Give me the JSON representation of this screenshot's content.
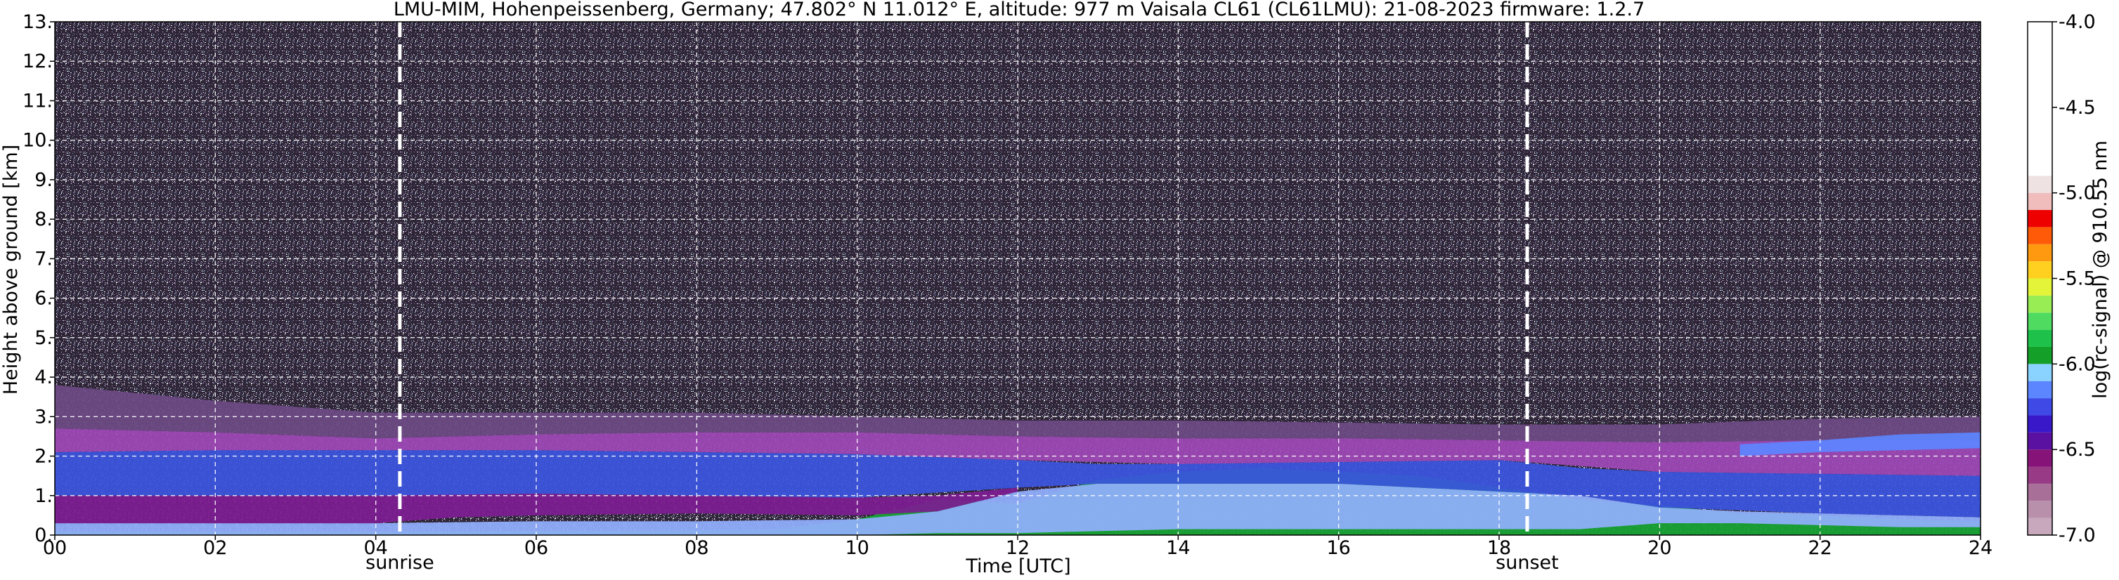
{
  "chart_data": {
    "type": "heatmap",
    "title": "LMU-MIM, Hohenpeissenberg, Germany; 47.802° N 11.012° E, altitude: 977 m    Vaisala CL61 (CL61LMU): 21-08-2023    firmware: 1.2.7",
    "xlabel": "Time [UTC]",
    "ylabel": "Height above ground [km]",
    "xlim": [
      0,
      24
    ],
    "ylim": [
      0,
      13
    ],
    "x_ticks": [
      {
        "value": 0,
        "label": "00"
      },
      {
        "value": 2,
        "label": "02"
      },
      {
        "value": 4,
        "label": "04"
      },
      {
        "value": 6,
        "label": "06"
      },
      {
        "value": 8,
        "label": "08"
      },
      {
        "value": 10,
        "label": "10"
      },
      {
        "value": 12,
        "label": "12"
      },
      {
        "value": 14,
        "label": "14"
      },
      {
        "value": 16,
        "label": "16"
      },
      {
        "value": 18,
        "label": "18"
      },
      {
        "value": 20,
        "label": "20"
      },
      {
        "value": 22,
        "label": "22"
      },
      {
        "value": 24,
        "label": "24"
      }
    ],
    "y_ticks": [
      {
        "value": 0,
        "label": "0."
      },
      {
        "value": 1,
        "label": "1."
      },
      {
        "value": 2,
        "label": "2."
      },
      {
        "value": 3,
        "label": "3."
      },
      {
        "value": 4,
        "label": "4."
      },
      {
        "value": 5,
        "label": "5."
      },
      {
        "value": 6,
        "label": "6."
      },
      {
        "value": 7,
        "label": "7."
      },
      {
        "value": 8,
        "label": "8."
      },
      {
        "value": 9,
        "label": "9."
      },
      {
        "value": 10,
        "label": "10."
      },
      {
        "value": 11,
        "label": "11."
      },
      {
        "value": 12,
        "label": "12."
      },
      {
        "value": 13,
        "label": "13."
      }
    ],
    "grid": true,
    "annotations": [
      {
        "label": "sunrise",
        "time": 4.3
      },
      {
        "label": "sunset",
        "time": 18.35
      }
    ],
    "colorbar": {
      "label": "log(rc-signal) @ 910.55 nm",
      "range": [
        -7.0,
        -4.0
      ],
      "ticks": [
        {
          "value": -4.0,
          "label": "-4.0"
        },
        {
          "value": -4.5,
          "label": "-4.5"
        },
        {
          "value": -5.0,
          "label": "-5.0"
        },
        {
          "value": -5.5,
          "label": "-5.5"
        },
        {
          "value": -6.0,
          "label": "-6.0"
        },
        {
          "value": -6.5,
          "label": "-6.5"
        },
        {
          "value": -7.0,
          "label": "-7.0"
        }
      ],
      "bands": [
        {
          "from": -7.0,
          "to": -6.9,
          "color": "#c8a8bc"
        },
        {
          "from": -6.9,
          "to": -6.8,
          "color": "#b890ab"
        },
        {
          "from": -6.8,
          "to": -6.7,
          "color": "#a87098"
        },
        {
          "from": -6.7,
          "to": -6.6,
          "color": "#983a86"
        },
        {
          "from": -6.6,
          "to": -6.5,
          "color": "#861478"
        },
        {
          "from": -6.5,
          "to": -6.4,
          "color": "#5a10a0"
        },
        {
          "from": -6.4,
          "to": -6.3,
          "color": "#3818c8"
        },
        {
          "from": -6.3,
          "to": -6.2,
          "color": "#3f4ae6"
        },
        {
          "from": -6.2,
          "to": -6.1,
          "color": "#5c86ff"
        },
        {
          "from": -6.1,
          "to": -6.0,
          "color": "#8ad2ff"
        },
        {
          "from": -6.0,
          "to": -5.9,
          "color": "#14a028"
        },
        {
          "from": -5.9,
          "to": -5.8,
          "color": "#1ec24a"
        },
        {
          "from": -5.8,
          "to": -5.7,
          "color": "#4edb60"
        },
        {
          "from": -5.7,
          "to": -5.6,
          "color": "#98ec54"
        },
        {
          "from": -5.6,
          "to": -5.5,
          "color": "#e4f438"
        },
        {
          "from": -5.5,
          "to": -5.4,
          "color": "#ffd020"
        },
        {
          "from": -5.4,
          "to": -5.3,
          "color": "#ff9a10"
        },
        {
          "from": -5.3,
          "to": -5.2,
          "color": "#ff5a08"
        },
        {
          "from": -5.2,
          "to": -5.1,
          "color": "#ee0000"
        },
        {
          "from": -5.1,
          "to": -5.0,
          "color": "#f0bcbc"
        },
        {
          "from": -5.0,
          "to": -4.9,
          "color": "#efe2e2"
        },
        {
          "from": -4.9,
          "to": -4.0,
          "color": "#ffffff"
        }
      ]
    },
    "layers": [
      {
        "name": "surface-green",
        "t": [
          0,
          4,
          6,
          8,
          9,
          10,
          11,
          12,
          13,
          14,
          15,
          16,
          17,
          18,
          19,
          20,
          21,
          22,
          23,
          24
        ],
        "bottom": [
          0,
          0,
          0,
          0,
          0,
          0,
          0,
          0,
          0,
          0,
          0,
          0,
          0,
          0,
          0,
          0,
          0,
          0,
          0,
          0
        ],
        "top": [
          0.08,
          0.08,
          0.1,
          0.12,
          0.15,
          0.4,
          0.9,
          0.8,
          1.4,
          1.6,
          1.7,
          1.6,
          1.5,
          1.2,
          0.9,
          0.75,
          0.55,
          0.5,
          0.4,
          0.35
        ],
        "color": "#16a532"
      },
      {
        "name": "light-blue-mixed-layer",
        "t": [
          0,
          4,
          6,
          8,
          10,
          11,
          12,
          13,
          14,
          15,
          16,
          17,
          18,
          19,
          20,
          21,
          22,
          23,
          24
        ],
        "bottom": [
          0,
          0,
          0,
          0,
          0,
          0.05,
          0.05,
          0.1,
          0.15,
          0.15,
          0.15,
          0.15,
          0.15,
          0.15,
          0.3,
          0.3,
          0.25,
          0.2,
          0.2
        ],
        "top": [
          0.3,
          0.3,
          0.35,
          0.35,
          0.4,
          0.6,
          1.1,
          1.3,
          1.3,
          1.3,
          1.3,
          1.2,
          1.1,
          1.0,
          0.7,
          0.6,
          0.55,
          0.5,
          0.45
        ],
        "color": "#93b0ff"
      },
      {
        "name": "purple-residual-layer",
        "t": [
          0,
          2,
          4,
          5,
          6,
          8,
          10,
          11,
          12
        ],
        "bottom": [
          0.3,
          0.3,
          0.3,
          0.45,
          0.5,
          0.55,
          0.5,
          0.6,
          1.1
        ],
        "top": [
          1.0,
          1.0,
          1.0,
          1.05,
          1.05,
          1.0,
          0.95,
          1.0,
          1.2
        ],
        "color": "#7e1c92"
      },
      {
        "name": "blue-aerosol-layer",
        "t": [
          0,
          2,
          4,
          6,
          8,
          10,
          12,
          13,
          14,
          16,
          18,
          19,
          20,
          22,
          24
        ],
        "bottom": [
          1.0,
          1.0,
          1.0,
          1.05,
          1.0,
          0.95,
          1.2,
          1.3,
          1.3,
          1.3,
          1.1,
          1.0,
          0.7,
          0.55,
          0.45
        ],
        "top": [
          2.1,
          2.15,
          2.15,
          2.15,
          2.1,
          2.05,
          1.9,
          1.8,
          1.8,
          1.85,
          1.9,
          1.7,
          1.6,
          1.55,
          1.5
        ],
        "color": "#3b55e0"
      },
      {
        "name": "magenta-upper-layer",
        "t": [
          0,
          2,
          4,
          6,
          8,
          10,
          12,
          14,
          16,
          18,
          20,
          22,
          24
        ],
        "bottom": [
          2.1,
          2.15,
          2.15,
          2.15,
          2.1,
          2.05,
          1.9,
          1.8,
          1.85,
          1.9,
          1.6,
          1.55,
          1.5
        ],
        "top": [
          2.7,
          2.6,
          2.45,
          2.55,
          2.6,
          2.6,
          2.5,
          2.45,
          2.45,
          2.4,
          2.35,
          2.4,
          2.4
        ],
        "color": "#9e48b6"
      },
      {
        "name": "faint-top-layer",
        "t": [
          0,
          2,
          4,
          6,
          8,
          10,
          12,
          14,
          16,
          18,
          20,
          22,
          24
        ],
        "bottom": [
          2.7,
          2.6,
          2.45,
          2.55,
          2.6,
          2.6,
          2.5,
          2.45,
          2.45,
          2.4,
          2.35,
          2.4,
          2.4
        ],
        "top": [
          3.8,
          3.4,
          3.1,
          3.1,
          3.1,
          3.0,
          2.9,
          2.9,
          2.85,
          2.8,
          2.8,
          2.95,
          3.0
        ],
        "color": "#6e4a84"
      },
      {
        "name": "blue-band-late",
        "t": [
          21,
          22,
          23,
          24
        ],
        "bottom": [
          2.0,
          2.1,
          2.15,
          2.2
        ],
        "top": [
          2.3,
          2.4,
          2.55,
          2.6
        ],
        "color": "#5c86ff"
      }
    ]
  }
}
